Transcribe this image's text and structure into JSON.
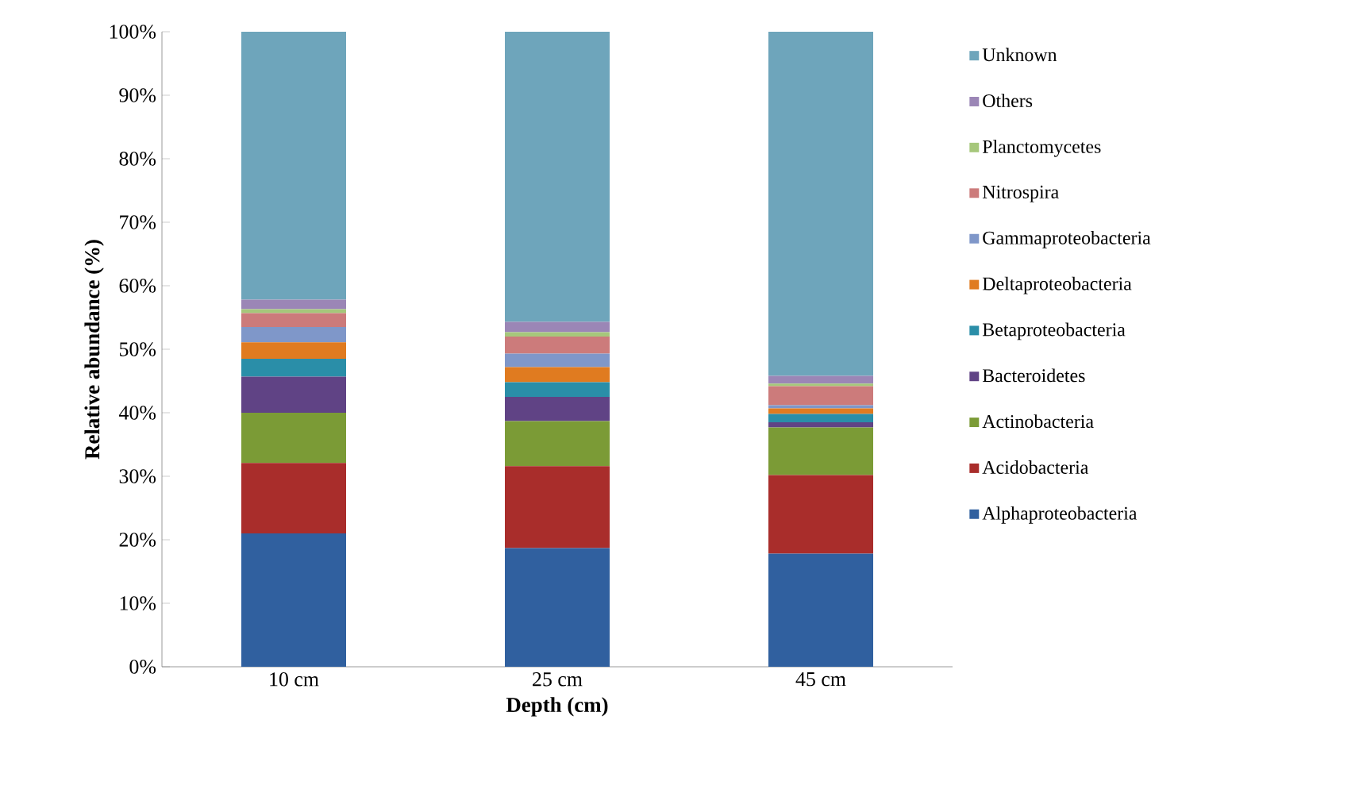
{
  "chart_data": {
    "type": "bar",
    "stacked": true,
    "xlabel": "Depth (cm)",
    "ylabel": "Relative abundance (%)",
    "categories": [
      "10 cm",
      "25 cm",
      "45 cm"
    ],
    "ylim": [
      0,
      100
    ],
    "yticks": [
      {
        "value": 0,
        "label": "0%"
      },
      {
        "value": 10,
        "label": "10%"
      },
      {
        "value": 20,
        "label": "20%"
      },
      {
        "value": 30,
        "label": "30%"
      },
      {
        "value": 40,
        "label": "40%"
      },
      {
        "value": 50,
        "label": "50%"
      },
      {
        "value": 60,
        "label": "60%"
      },
      {
        "value": 70,
        "label": "70%"
      },
      {
        "value": 80,
        "label": "80%"
      },
      {
        "value": 90,
        "label": "90%"
      },
      {
        "value": 100,
        "label": "100%"
      }
    ],
    "legend": "right",
    "series": [
      {
        "name": "Alphaproteobacteria",
        "color": "#30609f",
        "values": [
          21.0,
          18.7,
          17.8
        ]
      },
      {
        "name": "Acidobacteria",
        "color": "#a92d2b",
        "values": [
          11.1,
          12.9,
          12.4
        ]
      },
      {
        "name": "Actinobacteria",
        "color": "#7b9b36",
        "values": [
          7.9,
          7.1,
          7.5
        ]
      },
      {
        "name": "Bacteroidetes",
        "color": "#604385",
        "values": [
          5.7,
          3.8,
          0.8
        ]
      },
      {
        "name": "Betaproteobacteria",
        "color": "#2a8ea8",
        "values": [
          2.8,
          2.3,
          1.3
        ]
      },
      {
        "name": "Deltaproteobacteria",
        "color": "#e07b20",
        "values": [
          2.6,
          2.4,
          0.9
        ]
      },
      {
        "name": "Gammaproteobacteria",
        "color": "#7f97c9",
        "values": [
          2.4,
          2.1,
          0.5
        ]
      },
      {
        "name": "Nitrospira",
        "color": "#cc7b7b",
        "values": [
          2.2,
          2.7,
          3.0
        ]
      },
      {
        "name": "Planctomycetes",
        "color": "#a6c77b",
        "values": [
          0.6,
          0.7,
          0.4
        ]
      },
      {
        "name": "Others",
        "color": "#9b86b6",
        "values": [
          1.5,
          1.6,
          1.2
        ]
      },
      {
        "name": "Unknown",
        "color": "#6ea5bb",
        "values": [
          42.2,
          45.7,
          54.2
        ]
      }
    ]
  }
}
